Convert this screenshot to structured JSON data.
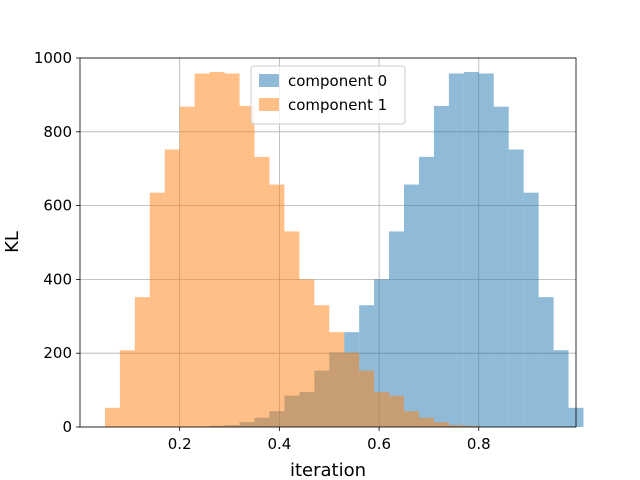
{
  "chart_data": {
    "type": "bar",
    "subtype": "overlapping-histogram",
    "title": "",
    "xlabel": "iteration",
    "ylabel": "KL",
    "xlim": [
      0.0,
      0.995
    ],
    "ylim": [
      0,
      1000
    ],
    "xticks": [
      0.2,
      0.4,
      0.6,
      0.8
    ],
    "xtick_labels": [
      "0.2",
      "0.4",
      "0.6",
      "0.8"
    ],
    "yticks": [
      0,
      200,
      400,
      600,
      800,
      1000
    ],
    "ytick_labels": [
      "0",
      "200",
      "400",
      "600",
      "800",
      "1000"
    ],
    "grid": true,
    "legend_placement": "upper-center",
    "bar_alpha": 0.5,
    "series": [
      {
        "name": "component 0",
        "color": "#1f77b4",
        "bin_start": 0.05,
        "bin_width": 0.03,
        "values": [
          0,
          0,
          0,
          0,
          0,
          0,
          0,
          3,
          5,
          13,
          25,
          43,
          85,
          95,
          153,
          202,
          257,
          330,
          400,
          530,
          657,
          732,
          870,
          958,
          962,
          958,
          868,
          752,
          635,
          352,
          208,
          52
        ]
      },
      {
        "name": "component 1",
        "color": "#ff7f0e",
        "bin_start": 0.05,
        "bin_width": 0.03,
        "values": [
          52,
          208,
          352,
          635,
          752,
          868,
          958,
          962,
          958,
          870,
          732,
          657,
          530,
          400,
          330,
          257,
          202,
          153,
          95,
          85,
          43,
          25,
          13,
          5,
          3,
          0,
          0,
          0,
          0,
          0,
          0,
          0
        ]
      }
    ]
  }
}
